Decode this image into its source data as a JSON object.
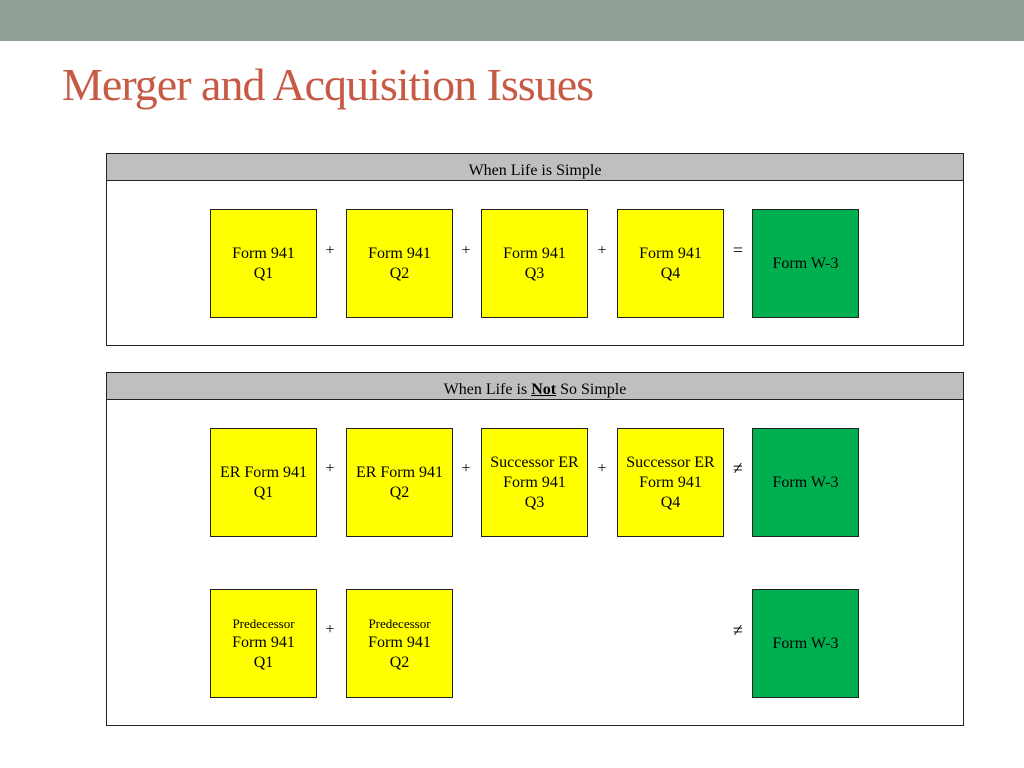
{
  "slide": {
    "title": "Merger and Acquisition Issues"
  },
  "simple": {
    "header": "When Life is Simple",
    "boxes": [
      {
        "line1": "Form 941",
        "line2": "Q1"
      },
      {
        "line1": "Form 941",
        "line2": "Q2"
      },
      {
        "line1": "Form 941",
        "line2": "Q3"
      },
      {
        "line1": "Form 941",
        "line2": "Q4"
      }
    ],
    "plus": "+",
    "equals": "=",
    "result": "Form W-3",
    "colors": {
      "yellow": "#ffff00",
      "green": "#00b050"
    }
  },
  "complex": {
    "header_pre": "When Life is ",
    "header_emph": "Not",
    "header_post": " So Simple",
    "row1": [
      {
        "line1": "ER Form 941",
        "line2": "Q1"
      },
      {
        "line1": "ER Form 941",
        "line2": "Q2"
      },
      {
        "line1": "Successor ER",
        "line2": "Form 941",
        "line3": "Q3"
      },
      {
        "line1": "Successor ER",
        "line2": "Form 941",
        "line3": "Q4"
      }
    ],
    "row2": [
      {
        "line0": "Predecessor",
        "line1": "Form 941",
        "line2": "Q1"
      },
      {
        "line0": "Predecessor",
        "line1": "Form 941",
        "line2": "Q2"
      }
    ],
    "plus": "+",
    "not_equal": "≠",
    "result": "Form W-3"
  }
}
